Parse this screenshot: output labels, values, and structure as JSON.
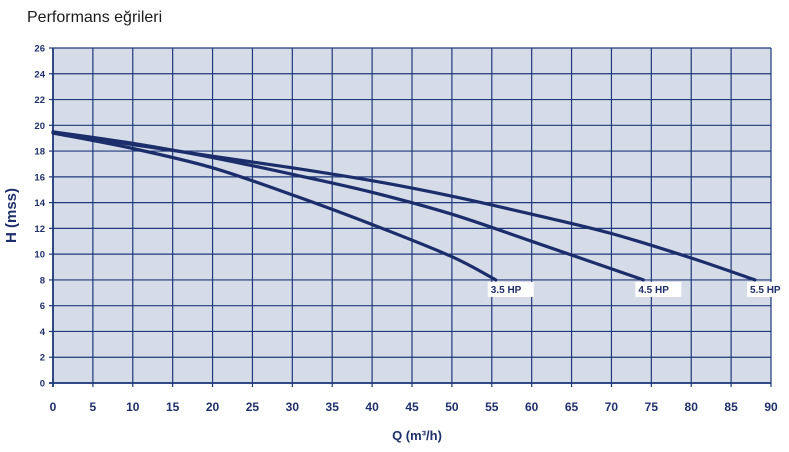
{
  "title": "Performans eğrileri",
  "chart_data": {
    "type": "line",
    "title": "Performans eğrileri",
    "xlabel": "Q (m³/h)",
    "ylabel": "H (mss)",
    "xlim": [
      0,
      90
    ],
    "ylim": [
      0,
      26
    ],
    "x_ticks": [
      0,
      5,
      10,
      15,
      20,
      25,
      30,
      35,
      40,
      45,
      50,
      55,
      60,
      65,
      70,
      75,
      80,
      85,
      90
    ],
    "y_ticks": [
      0,
      2,
      4,
      6,
      8,
      10,
      12,
      14,
      16,
      18,
      20,
      22,
      24,
      26
    ],
    "grid": true,
    "series": [
      {
        "name": "3.5 HP",
        "points": [
          [
            0,
            19.4
          ],
          [
            10,
            18.2
          ],
          [
            20,
            16.7
          ],
          [
            30,
            14.6
          ],
          [
            40,
            12.3
          ],
          [
            50,
            9.8
          ],
          [
            55.5,
            8.0
          ]
        ]
      },
      {
        "name": "4.5 HP",
        "points": [
          [
            0,
            19.5
          ],
          [
            10,
            18.6
          ],
          [
            20,
            17.5
          ],
          [
            30,
            16.2
          ],
          [
            40,
            14.8
          ],
          [
            50,
            13.1
          ],
          [
            60,
            11.0
          ],
          [
            74,
            8.0
          ]
        ]
      },
      {
        "name": "5.5 HP",
        "points": [
          [
            0,
            19.4
          ],
          [
            10,
            18.5
          ],
          [
            20,
            17.6
          ],
          [
            30,
            16.7
          ],
          [
            40,
            15.7
          ],
          [
            50,
            14.5
          ],
          [
            60,
            13.1
          ],
          [
            70,
            11.6
          ],
          [
            80,
            9.7
          ],
          [
            88,
            8.0
          ]
        ]
      }
    ]
  },
  "colors": {
    "plot_background": "#d6dbe8",
    "grid": "#1f3a7a",
    "curve": "#1c2d6b",
    "text": "#1f2f6b"
  }
}
